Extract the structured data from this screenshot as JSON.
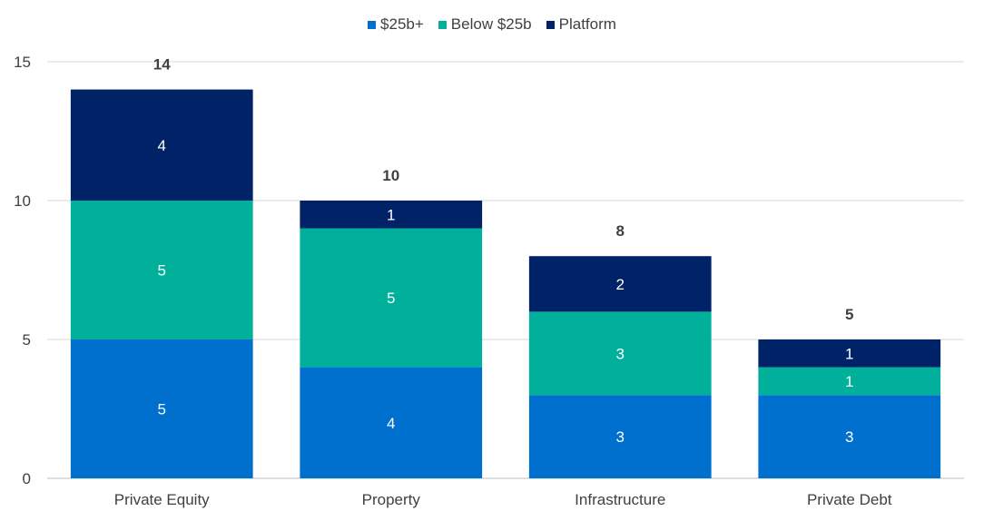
{
  "chart_data": {
    "type": "bar",
    "stacked": true,
    "title": "",
    "xlabel": "",
    "ylabel": "",
    "categories": [
      "Private Equity",
      "Property",
      "Infrastructure",
      "Private Debt"
    ],
    "series": [
      {
        "name": "$25b+",
        "values": [
          5,
          4,
          3,
          3
        ],
        "color": "#0070CF"
      },
      {
        "name": "Below $25b",
        "values": [
          5,
          5,
          3,
          1
        ],
        "color": "#00B09B"
      },
      {
        "name": "Platform",
        "values": [
          4,
          1,
          2,
          1
        ],
        "color": "#002266"
      }
    ],
    "totals": [
      14,
      10,
      8,
      5
    ],
    "ylim": [
      0,
      15
    ],
    "yticks": [
      0,
      5,
      10,
      15
    ],
    "grid": true,
    "legend_position": "top-center"
  }
}
